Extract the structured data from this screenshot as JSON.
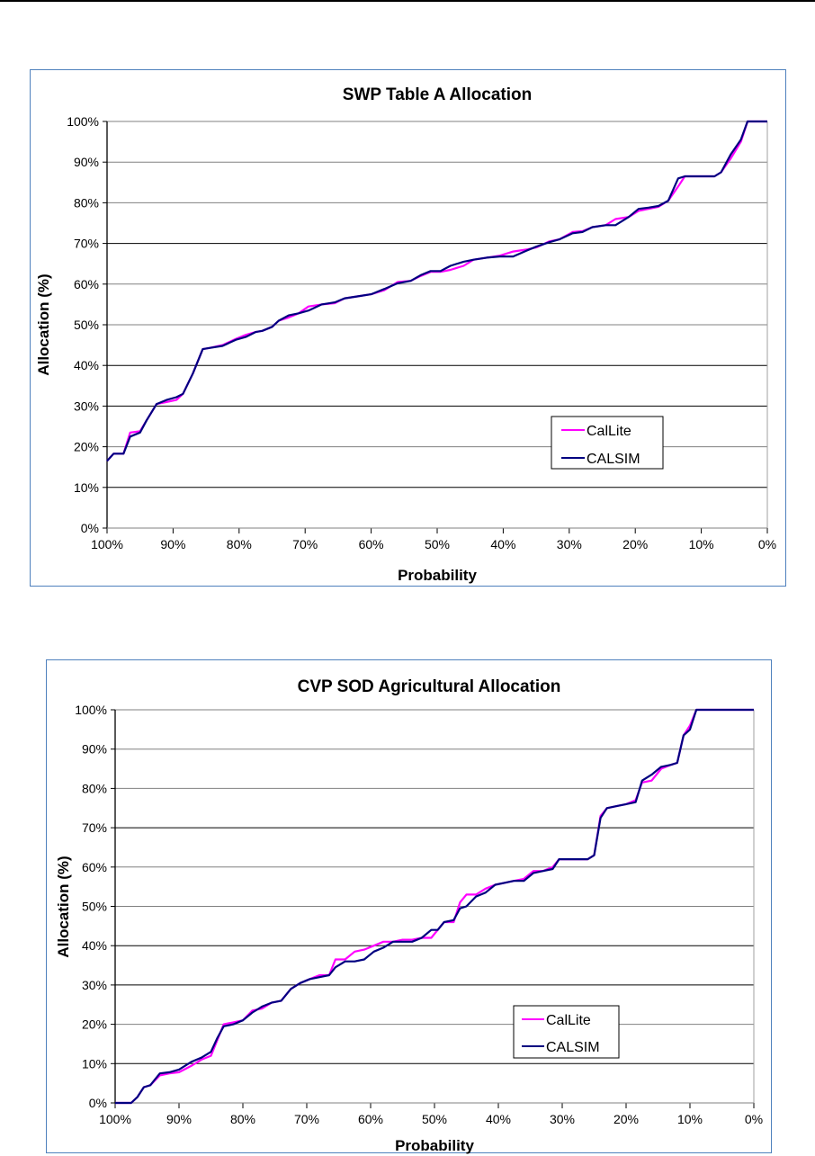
{
  "chart_data": [
    {
      "type": "line",
      "title": "SWP Table A Allocation",
      "xlabel": "Probability",
      "ylabel": "Allocation (%)",
      "xlim": [
        100,
        0
      ],
      "ylim": [
        0,
        100
      ],
      "x_ticks": [
        "100%",
        "90%",
        "80%",
        "70%",
        "60%",
        "50%",
        "40%",
        "30%",
        "20%",
        "10%",
        "0%"
      ],
      "y_ticks": [
        "0%",
        "10%",
        "20%",
        "30%",
        "40%",
        "50%",
        "60%",
        "70%",
        "80%",
        "90%",
        "100%"
      ],
      "grid": true,
      "legend_position": "lower-right",
      "series": [
        {
          "name": "CalLite",
          "color": "#ff00ff",
          "x": [
            100,
            99,
            97.5,
            96.5,
            95,
            94,
            92.5,
            91,
            89.5,
            88.5,
            87,
            85.5,
            84.5,
            82.5,
            80.5,
            79,
            77.5,
            76.5,
            75,
            74,
            72.5,
            71,
            69.5,
            67.5,
            65.5,
            64,
            62,
            60,
            58,
            56,
            54,
            52.5,
            51,
            49.5,
            48,
            46,
            44.5,
            42.5,
            40.5,
            38.5,
            36.5,
            35,
            33,
            31.5,
            29.5,
            28,
            26.5,
            24.5,
            23,
            21,
            19.5,
            18,
            16.5,
            15,
            13.5,
            12.5,
            11,
            9,
            8,
            7,
            5.5,
            4,
            3,
            1.5,
            0
          ],
          "y": [
            16.5,
            18.3,
            18.3,
            23.5,
            23.8,
            26.5,
            30.5,
            31,
            31.5,
            33,
            38,
            44,
            44.3,
            45,
            46.5,
            47.5,
            48.2,
            48.5,
            49.5,
            51,
            51.8,
            52.8,
            54.5,
            55,
            55.3,
            56.5,
            57,
            57.5,
            58.5,
            60.5,
            60.8,
            62,
            63,
            63,
            63.5,
            64.5,
            66,
            66.5,
            67,
            68,
            68.5,
            69,
            70.5,
            71,
            72.8,
            73,
            74,
            74.5,
            76,
            76.5,
            78,
            78.5,
            79,
            80.5,
            84,
            86.5,
            86.5,
            86.5,
            86.5,
            87.5,
            91,
            95,
            100,
            100,
            100
          ]
        },
        {
          "name": "CALSIM",
          "color": "#000080",
          "x": [
            100,
            99,
            97.5,
            96.5,
            95,
            94,
            92.5,
            91,
            89.5,
            88.5,
            87,
            85.5,
            84.5,
            82.5,
            80.5,
            79,
            77.5,
            76.5,
            75,
            74,
            72.5,
            71,
            69.5,
            67.5,
            65.5,
            64,
            62,
            60,
            58,
            56,
            54,
            52.5,
            51,
            49.5,
            48,
            46,
            44.5,
            42.5,
            40.5,
            38.5,
            36.5,
            35,
            33,
            31.5,
            29.5,
            28,
            26.5,
            24.5,
            23,
            21,
            19.5,
            18,
            16.5,
            15,
            13.5,
            12.5,
            11,
            9,
            8,
            7,
            5.5,
            4,
            3,
            1.5,
            0
          ],
          "y": [
            16.5,
            18.3,
            18.3,
            22.5,
            23.5,
            26.5,
            30.5,
            31.5,
            32.2,
            33,
            38,
            44,
            44.3,
            44.8,
            46.3,
            47,
            48.2,
            48.5,
            49.5,
            51,
            52.3,
            52.8,
            53.5,
            55,
            55.5,
            56.5,
            57,
            57.5,
            58.8,
            60.2,
            60.8,
            62.2,
            63.2,
            63.2,
            64.5,
            65.5,
            66,
            66.5,
            66.8,
            66.8,
            68.2,
            69.2,
            70.3,
            71,
            72.5,
            72.8,
            74,
            74.5,
            74.5,
            76.5,
            78.5,
            78.8,
            79.2,
            80.5,
            86,
            86.5,
            86.5,
            86.5,
            86.5,
            87.5,
            92,
            95.5,
            100,
            100,
            100
          ]
        }
      ]
    },
    {
      "type": "line",
      "title": "CVP SOD Agricultural Allocation",
      "xlabel": "Probability",
      "ylabel": "Allocation (%)",
      "xlim": [
        100,
        0
      ],
      "ylim": [
        0,
        100
      ],
      "x_ticks": [
        "100%",
        "90%",
        "80%",
        "70%",
        "60%",
        "50%",
        "40%",
        "30%",
        "20%",
        "10%",
        "0%"
      ],
      "y_ticks": [
        "0%",
        "10%",
        "20%",
        "30%",
        "40%",
        "50%",
        "60%",
        "70%",
        "80%",
        "90%",
        "100%"
      ],
      "grid": true,
      "legend_position": "lower-right",
      "series": [
        {
          "name": "CalLite",
          "color": "#ff00ff",
          "x": [
            100,
            97.5,
            96.5,
            95.5,
            94.5,
            93,
            91.5,
            90,
            88,
            86.5,
            85,
            84,
            83,
            81.5,
            80,
            78.5,
            77,
            75.5,
            74,
            72.5,
            71,
            69.5,
            68,
            66.5,
            65.5,
            64,
            62.5,
            61,
            59.5,
            58,
            56.5,
            55,
            53.5,
            52,
            50.5,
            49.5,
            48.5,
            47,
            46,
            45,
            43.5,
            42,
            40.5,
            39,
            37.5,
            36,
            34.5,
            33,
            31.5,
            30.5,
            29,
            27.5,
            26,
            25,
            24,
            23,
            21.5,
            20,
            18.5,
            17.5,
            16,
            14.5,
            13,
            12,
            11,
            10,
            9,
            8,
            0
          ],
          "y": [
            0,
            0,
            1.5,
            4,
            4.5,
            7,
            7.5,
            7.8,
            9.5,
            11,
            12,
            16,
            20,
            20.5,
            21,
            23.5,
            24,
            25.5,
            26,
            29,
            30.5,
            31.5,
            32.5,
            32.5,
            36.5,
            36.5,
            38.5,
            39,
            40,
            41,
            41,
            41.5,
            41.5,
            42,
            42,
            44,
            46,
            46,
            51,
            53,
            53,
            54.5,
            55.5,
            56,
            56.5,
            57,
            59,
            59,
            60,
            62,
            62,
            62,
            62,
            63,
            73,
            75,
            75.5,
            76,
            77,
            81.5,
            82,
            85,
            86,
            86.5,
            93.5,
            96,
            100,
            100,
            100
          ]
        },
        {
          "name": "CALSIM",
          "color": "#000080",
          "x": [
            100,
            97.5,
            96.5,
            95.5,
            94.5,
            93,
            91.5,
            90,
            88,
            86.5,
            85,
            84,
            83,
            81.5,
            80,
            78.5,
            77,
            75.5,
            74,
            72.5,
            71,
            69.5,
            68,
            66.5,
            65.5,
            64,
            62.5,
            61,
            59.5,
            58,
            56.5,
            55,
            53.5,
            52,
            50.5,
            49.5,
            48.5,
            47,
            46,
            45,
            43.5,
            42,
            40.5,
            39,
            37.5,
            36,
            34.5,
            33,
            31.5,
            30.5,
            29,
            27.5,
            26,
            25,
            24,
            23,
            21.5,
            20,
            18.5,
            17.5,
            16,
            14.5,
            13,
            12,
            11,
            10,
            9,
            8,
            0
          ],
          "y": [
            0,
            0,
            1.5,
            4,
            4.5,
            7.5,
            7.8,
            8.5,
            10.5,
            11.5,
            13,
            16.5,
            19.5,
            20,
            21,
            23,
            24.5,
            25.5,
            26,
            29,
            30.5,
            31.5,
            32,
            32.5,
            34.5,
            36,
            36,
            36.5,
            38.5,
            39.5,
            41,
            41,
            41,
            42,
            44,
            44,
            46,
            46.5,
            49.5,
            50,
            52.5,
            53.5,
            55.5,
            56,
            56.5,
            56.5,
            58.5,
            59,
            59.5,
            62,
            62,
            62,
            62,
            63,
            72.5,
            75,
            75.5,
            76,
            76.5,
            82,
            83.5,
            85.5,
            86,
            86.5,
            93.5,
            95,
            100,
            100,
            100
          ]
        }
      ]
    }
  ]
}
